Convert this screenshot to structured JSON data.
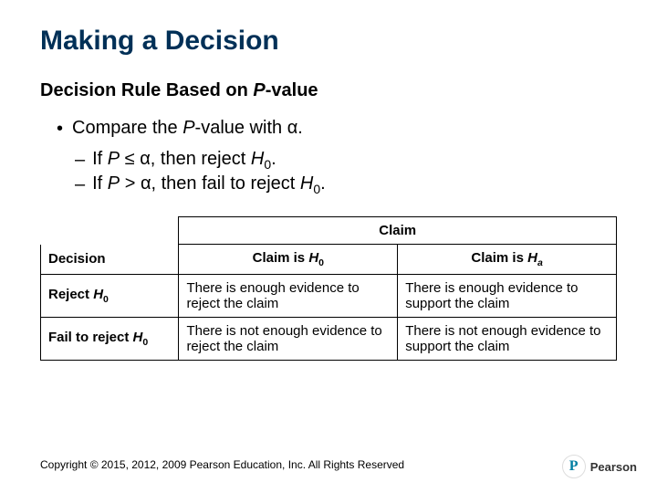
{
  "title": "Making a Decision",
  "subtitle_prefix": "Decision Rule Based on ",
  "subtitle_pvalue": "P",
  "subtitle_suffix": "-value",
  "bullet_prefix": "Compare the ",
  "bullet_pvalue": "P",
  "bullet_mid": "-value with ",
  "bullet_alpha": "α",
  "bullet_end": ".",
  "rule1_if": "If ",
  "rule1_p": "P",
  "rule1_op": " ≤ ",
  "rule1_alpha": "α",
  "rule1_then": ", then reject ",
  "rule1_h": "H",
  "rule1_sub": "0",
  "rule1_end": ".",
  "rule2_if": "If ",
  "rule2_p": "P",
  "rule2_op": " > ",
  "rule2_alpha": "α",
  "rule2_then": ", then fail to reject ",
  "rule2_h": "H",
  "rule2_sub": "0",
  "rule2_end": ".",
  "table": {
    "claim_header": "Claim",
    "decision_header": "Decision",
    "col1_prefix": "Claim is ",
    "col1_h": "H",
    "col1_sub": "0",
    "col2_prefix": "Claim is ",
    "col2_h": "H",
    "col2_sub": "a",
    "row1_label_prefix": "Reject ",
    "row1_label_h": "H",
    "row1_label_sub": "0",
    "row1_c1": "There is enough evidence to reject the claim",
    "row1_c2": "There is enough evidence to support the claim",
    "row2_label_prefix": "Fail to reject ",
    "row2_label_h": "H",
    "row2_label_sub": "0",
    "row2_c1": "There is not enough evidence to reject the claim",
    "row2_c2": "There is not enough evidence to support the claim"
  },
  "copyright": "Copyright © 2015, 2012, 2009 Pearson Education, Inc. All Rights Reserved",
  "logo_letter": "P",
  "logo_text": "Pearson"
}
